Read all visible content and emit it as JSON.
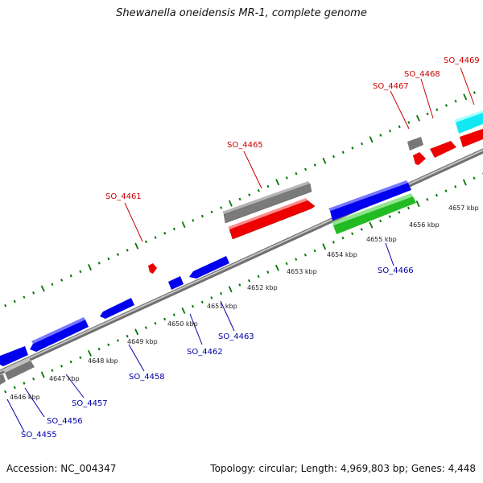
{
  "title": "Shewanella oneidensis MR-1, complete genome",
  "accession": "Accession: NC_004347",
  "summary": "Topology: circular; Length: 4,969,803 bp; Genes: 4,448",
  "colors": {
    "forward_cds": "#ff0000",
    "reverse_cds": "#0000ff",
    "other_gene": "#808080",
    "rna": "#33cc33",
    "cyan_feature": "#00ffff",
    "backbone": "#9a9a9a",
    "tick": "#007700",
    "forward_label": "#cc0000",
    "reverse_label": "#0000aa"
  },
  "ruler": [
    {
      "label": "4646 kbp"
    },
    {
      "label": "4647 kbp"
    },
    {
      "label": "4648 kbp"
    },
    {
      "label": "4649 kbp"
    },
    {
      "label": "4650 kbp"
    },
    {
      "label": "4651 kbp"
    },
    {
      "label": "4652 kbp"
    },
    {
      "label": "4653 kbp"
    },
    {
      "label": "4654 kbp"
    },
    {
      "label": "4655 kbp"
    },
    {
      "label": "4656 kbp"
    },
    {
      "label": "4657 kbp"
    }
  ],
  "gene_labels": [
    {
      "name": "SO_4461",
      "strand": "forward"
    },
    {
      "name": "SO_4465",
      "strand": "forward"
    },
    {
      "name": "SO_4467",
      "strand": "forward"
    },
    {
      "name": "SO_4468",
      "strand": "forward"
    },
    {
      "name": "SO_4469",
      "strand": "forward"
    },
    {
      "name": "SO_4455",
      "strand": "reverse"
    },
    {
      "name": "SO_4456",
      "strand": "reverse"
    },
    {
      "name": "SO_4457",
      "strand": "reverse"
    },
    {
      "name": "SO_4458",
      "strand": "reverse"
    },
    {
      "name": "SO_4462",
      "strand": "reverse"
    },
    {
      "name": "SO_4463",
      "strand": "reverse"
    },
    {
      "name": "SO_4466",
      "strand": "reverse"
    }
  ]
}
